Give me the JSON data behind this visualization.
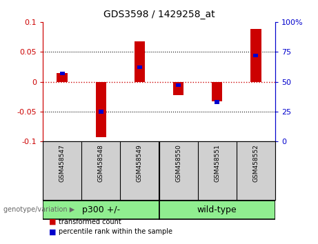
{
  "title": "GDS3598 / 1429258_at",
  "samples": [
    "GSM458547",
    "GSM458548",
    "GSM458549",
    "GSM458550",
    "GSM458551",
    "GSM458552"
  ],
  "red_values": [
    0.015,
    -0.093,
    0.068,
    -0.022,
    -0.033,
    0.088
  ],
  "blue_values_pct": [
    57,
    25,
    62,
    47,
    33,
    72
  ],
  "ylim_left": [
    -0.1,
    0.1
  ],
  "ylim_right": [
    0,
    100
  ],
  "yticks_left": [
    -0.1,
    -0.05,
    0,
    0.05,
    0.1
  ],
  "yticks_right": [
    0,
    25,
    50,
    75,
    100
  ],
  "left_color": "#cc0000",
  "right_color": "#0000cc",
  "zero_line_color": "#cc0000",
  "bar_width": 0.28,
  "blue_bar_width": 0.12,
  "bg_color": "#ffffff",
  "plot_bg": "white",
  "legend_red_label": "transformed count",
  "legend_blue_label": "percentile rank within the sample",
  "genotype_label": "genotype/variation",
  "sample_bg_color": "#d0d0d0",
  "group_color": "#90EE90",
  "group1_label": "p300 +/-",
  "group2_label": "wild-type",
  "group1_samples": 3,
  "group2_samples": 3
}
